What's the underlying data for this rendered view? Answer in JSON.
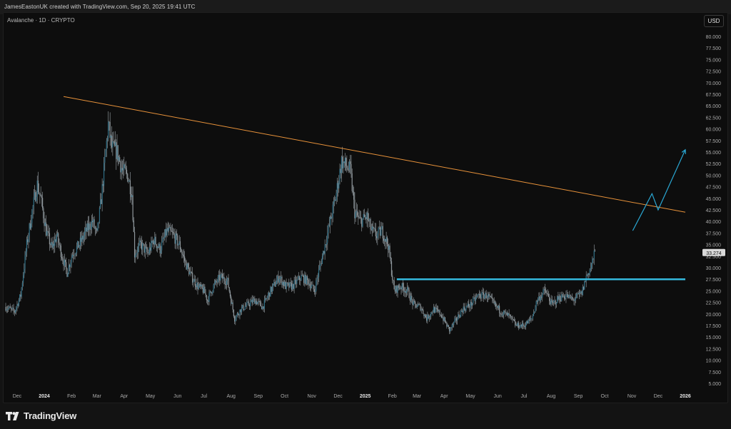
{
  "header": {
    "attribution": "JamesEastonUK created with TradingView.com, Sep 20, 2025 19:41 UTC"
  },
  "chart_header": {
    "symbol": "Avalanche · 1D · CRYPTO",
    "currency_button": "USD"
  },
  "footer": {
    "brand": "TradingView"
  },
  "colors": {
    "background": "#0d0d0d",
    "candles": "#2f6f86",
    "candle_wicks": "#9aa3a8",
    "resistance": "#e8923a",
    "support": "#35b9dd",
    "projection": "#2aa7d3",
    "price_label_bg": "#d9d9d9"
  },
  "chart_data": {
    "type": "candlestick",
    "title": "Avalanche · 1D · CRYPTO",
    "currency": "USD",
    "y_ticks": [
      "80.000",
      "77.500",
      "75.000",
      "72.500",
      "70.000",
      "67.500",
      "65.000",
      "62.500",
      "60.000",
      "57.500",
      "55.000",
      "52.500",
      "50.000",
      "47.500",
      "45.000",
      "42.500",
      "40.000",
      "37.500",
      "35.000",
      "32.500",
      "30.000",
      "27.500",
      "25.000",
      "22.500",
      "20.000",
      "17.500",
      "15.000",
      "12.500",
      "10.000",
      "7.500",
      "5.000"
    ],
    "x_ticks": [
      {
        "label": "Dec",
        "date": "2023-12-01",
        "bold": false
      },
      {
        "label": "2024",
        "date": "2024-01-01",
        "bold": true
      },
      {
        "label": "Feb",
        "date": "2024-02-01",
        "bold": false
      },
      {
        "label": "Mar",
        "date": "2024-03-01",
        "bold": false
      },
      {
        "label": "Apr",
        "date": "2024-04-01",
        "bold": false
      },
      {
        "label": "May",
        "date": "2024-05-01",
        "bold": false
      },
      {
        "label": "Jun",
        "date": "2024-06-01",
        "bold": false
      },
      {
        "label": "Jul",
        "date": "2024-07-01",
        "bold": false
      },
      {
        "label": "Aug",
        "date": "2024-08-01",
        "bold": false
      },
      {
        "label": "Sep",
        "date": "2024-09-01",
        "bold": false
      },
      {
        "label": "Oct",
        "date": "2024-10-01",
        "bold": false
      },
      {
        "label": "Nov",
        "date": "2024-11-01",
        "bold": false
      },
      {
        "label": "Dec",
        "date": "2024-12-01",
        "bold": false
      },
      {
        "label": "2025",
        "date": "2025-01-01",
        "bold": true
      },
      {
        "label": "Feb",
        "date": "2025-02-01",
        "bold": false
      },
      {
        "label": "Mar",
        "date": "2025-03-01",
        "bold": false
      },
      {
        "label": "Apr",
        "date": "2025-04-01",
        "bold": false
      },
      {
        "label": "May",
        "date": "2025-05-01",
        "bold": false
      },
      {
        "label": "Jun",
        "date": "2025-06-01",
        "bold": false
      },
      {
        "label": "Jul",
        "date": "2025-07-01",
        "bold": false
      },
      {
        "label": "Aug",
        "date": "2025-08-01",
        "bold": false
      },
      {
        "label": "Sep",
        "date": "2025-09-01",
        "bold": false
      },
      {
        "label": "Oct",
        "date": "2025-10-01",
        "bold": false
      },
      {
        "label": "Nov",
        "date": "2025-11-01",
        "bold": false
      },
      {
        "label": "Dec",
        "date": "2025-12-01",
        "bold": false
      },
      {
        "label": "2026",
        "date": "2026-01-01",
        "bold": true
      }
    ],
    "last_price": "33.274",
    "price_path": [
      [
        "2023-11-18",
        21.5
      ],
      [
        "2023-11-28",
        20.5
      ],
      [
        "2023-12-05",
        24
      ],
      [
        "2023-12-12",
        35
      ],
      [
        "2023-12-18",
        42
      ],
      [
        "2023-12-24",
        48
      ],
      [
        "2023-12-28",
        45
      ],
      [
        "2024-01-03",
        38
      ],
      [
        "2024-01-10",
        34
      ],
      [
        "2024-01-15",
        37
      ],
      [
        "2024-01-22",
        32
      ],
      [
        "2024-01-27",
        29
      ],
      [
        "2024-02-02",
        33
      ],
      [
        "2024-02-10",
        35
      ],
      [
        "2024-02-18",
        38
      ],
      [
        "2024-02-25",
        40
      ],
      [
        "2024-03-01",
        37
      ],
      [
        "2024-03-06",
        45
      ],
      [
        "2024-03-10",
        53
      ],
      [
        "2024-03-14",
        61
      ],
      [
        "2024-03-18",
        56
      ],
      [
        "2024-03-24",
        55
      ],
      [
        "2024-03-30",
        51
      ],
      [
        "2024-04-05",
        50
      ],
      [
        "2024-04-10",
        46
      ],
      [
        "2024-04-13",
        33
      ],
      [
        "2024-04-20",
        35
      ],
      [
        "2024-04-28",
        33
      ],
      [
        "2024-05-05",
        36
      ],
      [
        "2024-05-12",
        34
      ],
      [
        "2024-05-20",
        38
      ],
      [
        "2024-05-27",
        37
      ],
      [
        "2024-06-03",
        35
      ],
      [
        "2024-06-10",
        31
      ],
      [
        "2024-06-17",
        28
      ],
      [
        "2024-06-24",
        26
      ],
      [
        "2024-07-01",
        25
      ],
      [
        "2024-07-05",
        23
      ],
      [
        "2024-07-12",
        26
      ],
      [
        "2024-07-20",
        28
      ],
      [
        "2024-07-28",
        27
      ],
      [
        "2024-08-02",
        22
      ],
      [
        "2024-08-05",
        19
      ],
      [
        "2024-08-12",
        21
      ],
      [
        "2024-08-20",
        22
      ],
      [
        "2024-08-28",
        23
      ],
      [
        "2024-09-06",
        21.5
      ],
      [
        "2024-09-15",
        25
      ],
      [
        "2024-09-25",
        28
      ],
      [
        "2024-10-02",
        26
      ],
      [
        "2024-10-10",
        26
      ],
      [
        "2024-10-20",
        28
      ],
      [
        "2024-10-28",
        27
      ],
      [
        "2024-11-04",
        25
      ],
      [
        "2024-11-10",
        30
      ],
      [
        "2024-11-15",
        34
      ],
      [
        "2024-11-22",
        40
      ],
      [
        "2024-11-28",
        45
      ],
      [
        "2024-12-05",
        53
      ],
      [
        "2024-12-10",
        52
      ],
      [
        "2024-12-15",
        51
      ],
      [
        "2024-12-20",
        42
      ],
      [
        "2024-12-26",
        40
      ],
      [
        "2025-01-03",
        41
      ],
      [
        "2025-01-08",
        38
      ],
      [
        "2025-01-14",
        37
      ],
      [
        "2025-01-20",
        38
      ],
      [
        "2025-01-27",
        35
      ],
      [
        "2025-02-03",
        25
      ],
      [
        "2025-02-10",
        26
      ],
      [
        "2025-02-18",
        25
      ],
      [
        "2025-02-25",
        22
      ],
      [
        "2025-03-05",
        21.5
      ],
      [
        "2025-03-12",
        19
      ],
      [
        "2025-03-20",
        21
      ],
      [
        "2025-03-28",
        20
      ],
      [
        "2025-04-07",
        16.5
      ],
      [
        "2025-04-14",
        18.5
      ],
      [
        "2025-04-22",
        21
      ],
      [
        "2025-05-01",
        22
      ],
      [
        "2025-05-10",
        24
      ],
      [
        "2025-05-20",
        24
      ],
      [
        "2025-05-28",
        22
      ],
      [
        "2025-06-05",
        20.5
      ],
      [
        "2025-06-14",
        19.5
      ],
      [
        "2025-06-22",
        17.5
      ],
      [
        "2025-07-01",
        17.5
      ],
      [
        "2025-07-10",
        19
      ],
      [
        "2025-07-16",
        23
      ],
      [
        "2025-07-25",
        25
      ],
      [
        "2025-08-02",
        22
      ],
      [
        "2025-08-10",
        23.5
      ],
      [
        "2025-08-18",
        24
      ],
      [
        "2025-08-26",
        23
      ],
      [
        "2025-09-05",
        24.5
      ],
      [
        "2025-09-10",
        28
      ],
      [
        "2025-09-15",
        30
      ],
      [
        "2025-09-20",
        33.3
      ]
    ],
    "annotations": [
      {
        "name": "resistance-trendline",
        "type": "line",
        "from": [
          "2024-01-23",
          67
        ],
        "to": [
          "2026-01-01",
          42
        ]
      },
      {
        "name": "support-horizontal",
        "type": "line",
        "from": [
          "2025-02-06",
          27.5
        ],
        "to": [
          "2026-01-01",
          27.5
        ]
      },
      {
        "name": "projection-path",
        "type": "polyline",
        "points": [
          [
            "2025-11-02",
            38
          ],
          [
            "2025-11-24",
            46
          ],
          [
            "2025-12-01",
            42.5
          ],
          [
            "2026-01-01",
            55.5
          ]
        ],
        "arrow": true
      }
    ]
  }
}
